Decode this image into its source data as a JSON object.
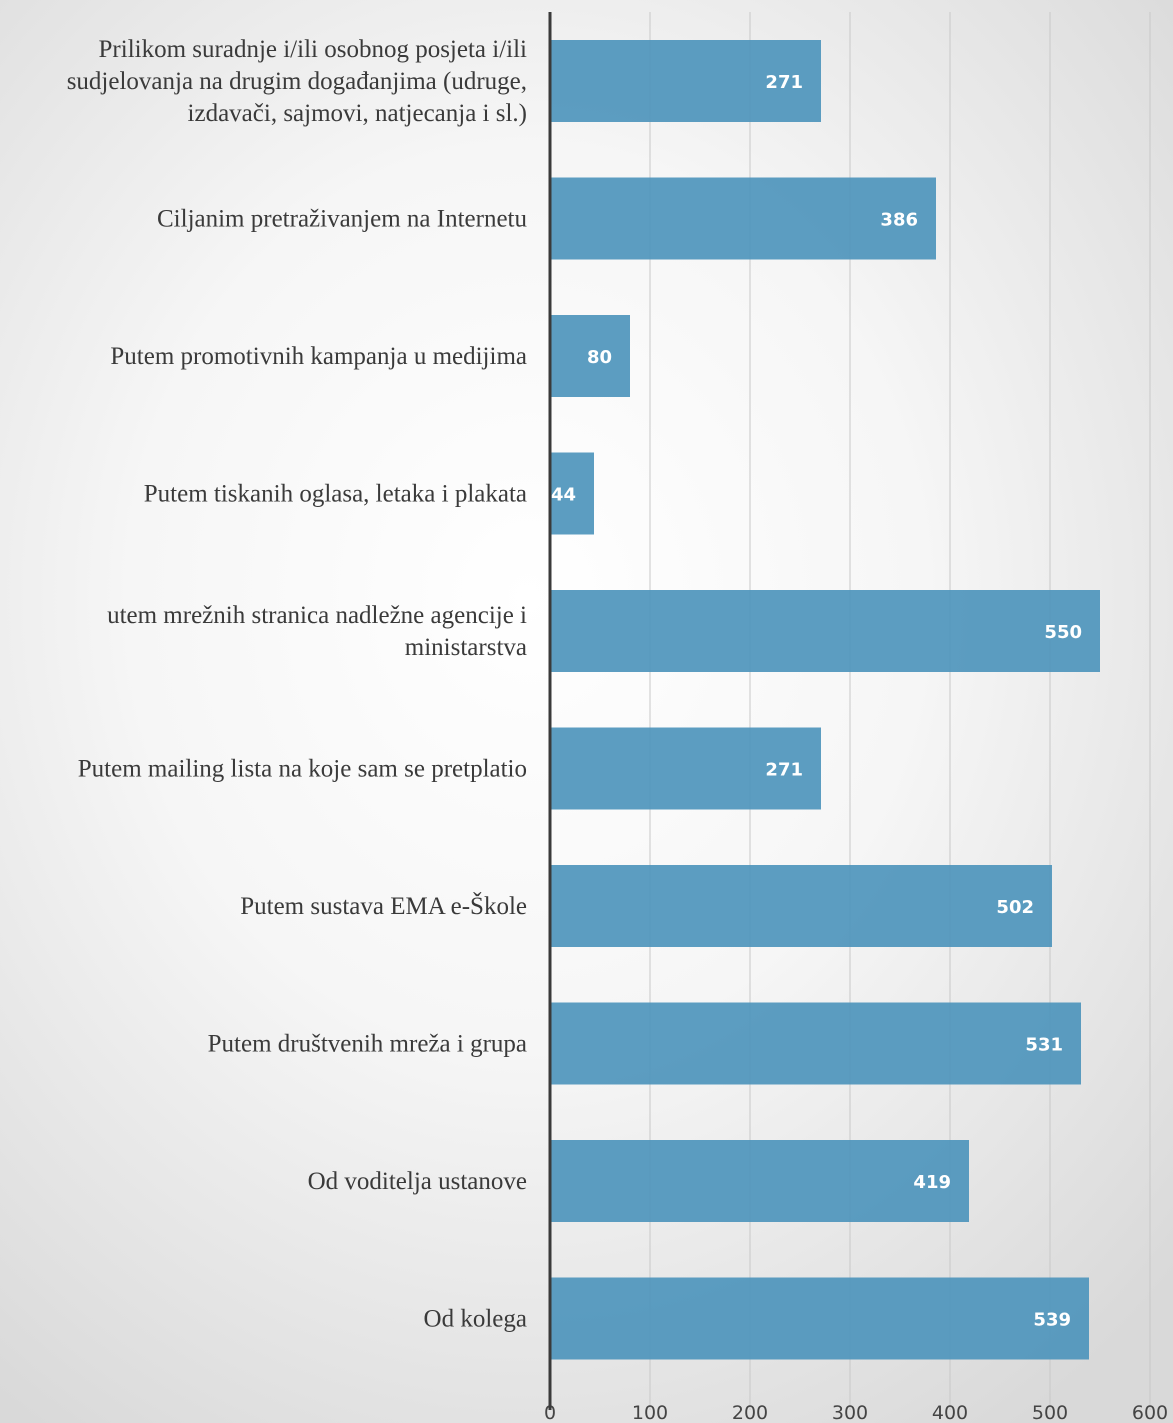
{
  "chart_data": {
    "type": "bar",
    "orientation": "horizontal",
    "title": "",
    "xlabel": "",
    "ylabel": "",
    "xlim": [
      0,
      600
    ],
    "x_ticks": [
      0,
      100,
      200,
      300,
      400,
      500,
      600
    ],
    "grid": true,
    "legend": "none",
    "bar_color": "#4e95bc",
    "categories": [
      "Prilikom suradnje i/ili osobnog posjeta i/ili sudjelovanja na drugim događanjima (udruge, izdavači, sajmovi, natjecanja i sl.)",
      "Ciljanim pretraživanjem na Internetu",
      "Putem promotivnih kampanja u medijima",
      "Putem tiskanih oglasa, letaka i plakata",
      "utem mrežnih stranica nadležne agencije i ministarstva",
      "Putem mailing lista na koje sam se pretplatio",
      "Putem sustava EMA e-Škole",
      "Putem društvenih mreža i grupa",
      "Od voditelja ustanove",
      "Od kolega"
    ],
    "category_lines": [
      [
        "Prilikom suradnje i/ili osobnog posjeta i/ili",
        "sudjelovanja na drugim događanjima (udruge,",
        "izdavači, sajmovi, natjecanja i sl.)"
      ],
      [
        "Ciljanim pretraživanjem na Internetu"
      ],
      [
        "Putem promotivnih kampanja u medijima"
      ],
      [
        "Putem tiskanih oglasa, letaka i plakata"
      ],
      [
        "utem mrežnih stranica nadležne agencije i",
        "ministarstva"
      ],
      [
        "Putem mailing lista na koje sam se pretplatio"
      ],
      [
        "Putem sustava EMA e-Škole"
      ],
      [
        "Putem društvenih mreža i grupa"
      ],
      [
        "Od voditelja ustanove"
      ],
      [
        "Od kolega"
      ]
    ],
    "values": [
      271,
      386,
      80,
      44,
      550,
      271,
      502,
      531,
      419,
      539
    ]
  }
}
